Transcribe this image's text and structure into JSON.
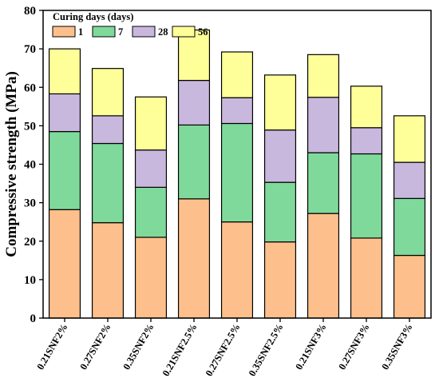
{
  "chart_data": {
    "type": "bar",
    "stacked": true,
    "title": "",
    "xlabel": "",
    "ylabel": "Compressive strength (MPa)",
    "ylim": [
      0,
      80
    ],
    "yticks": [
      0,
      10,
      20,
      30,
      40,
      50,
      60,
      70,
      80
    ],
    "grid": false,
    "legend_title": "Curing days (days)",
    "legend_position": "top-left",
    "categories": [
      "0.21SNF2%",
      "0.27SNF2%",
      "0.35SNF2%",
      "0.21SNF2.5%",
      "0.27SNF2.5%",
      "0.35SNF2.5%",
      "0.21SNF3%",
      "0.27SNF3%",
      "0.35SNF3%"
    ],
    "series": [
      {
        "name": "1",
        "color": "#FDC08C",
        "values": [
          28.2,
          24.8,
          21.0,
          31.0,
          25.0,
          19.8,
          27.2,
          20.8,
          16.3
        ]
      },
      {
        "name": "7",
        "color": "#7FD99B",
        "values": [
          20.3,
          20.6,
          13.0,
          19.2,
          25.6,
          15.5,
          15.8,
          21.9,
          14.8
        ]
      },
      {
        "name": "28",
        "color": "#C9B8DE",
        "values": [
          9.8,
          7.2,
          9.7,
          11.6,
          6.7,
          13.6,
          14.4,
          6.8,
          9.4
        ]
      },
      {
        "name": "56",
        "color": "#FFFF99",
        "values": [
          11.7,
          12.3,
          13.8,
          13.1,
          11.9,
          14.3,
          11.1,
          10.8,
          12.1
        ]
      }
    ]
  }
}
